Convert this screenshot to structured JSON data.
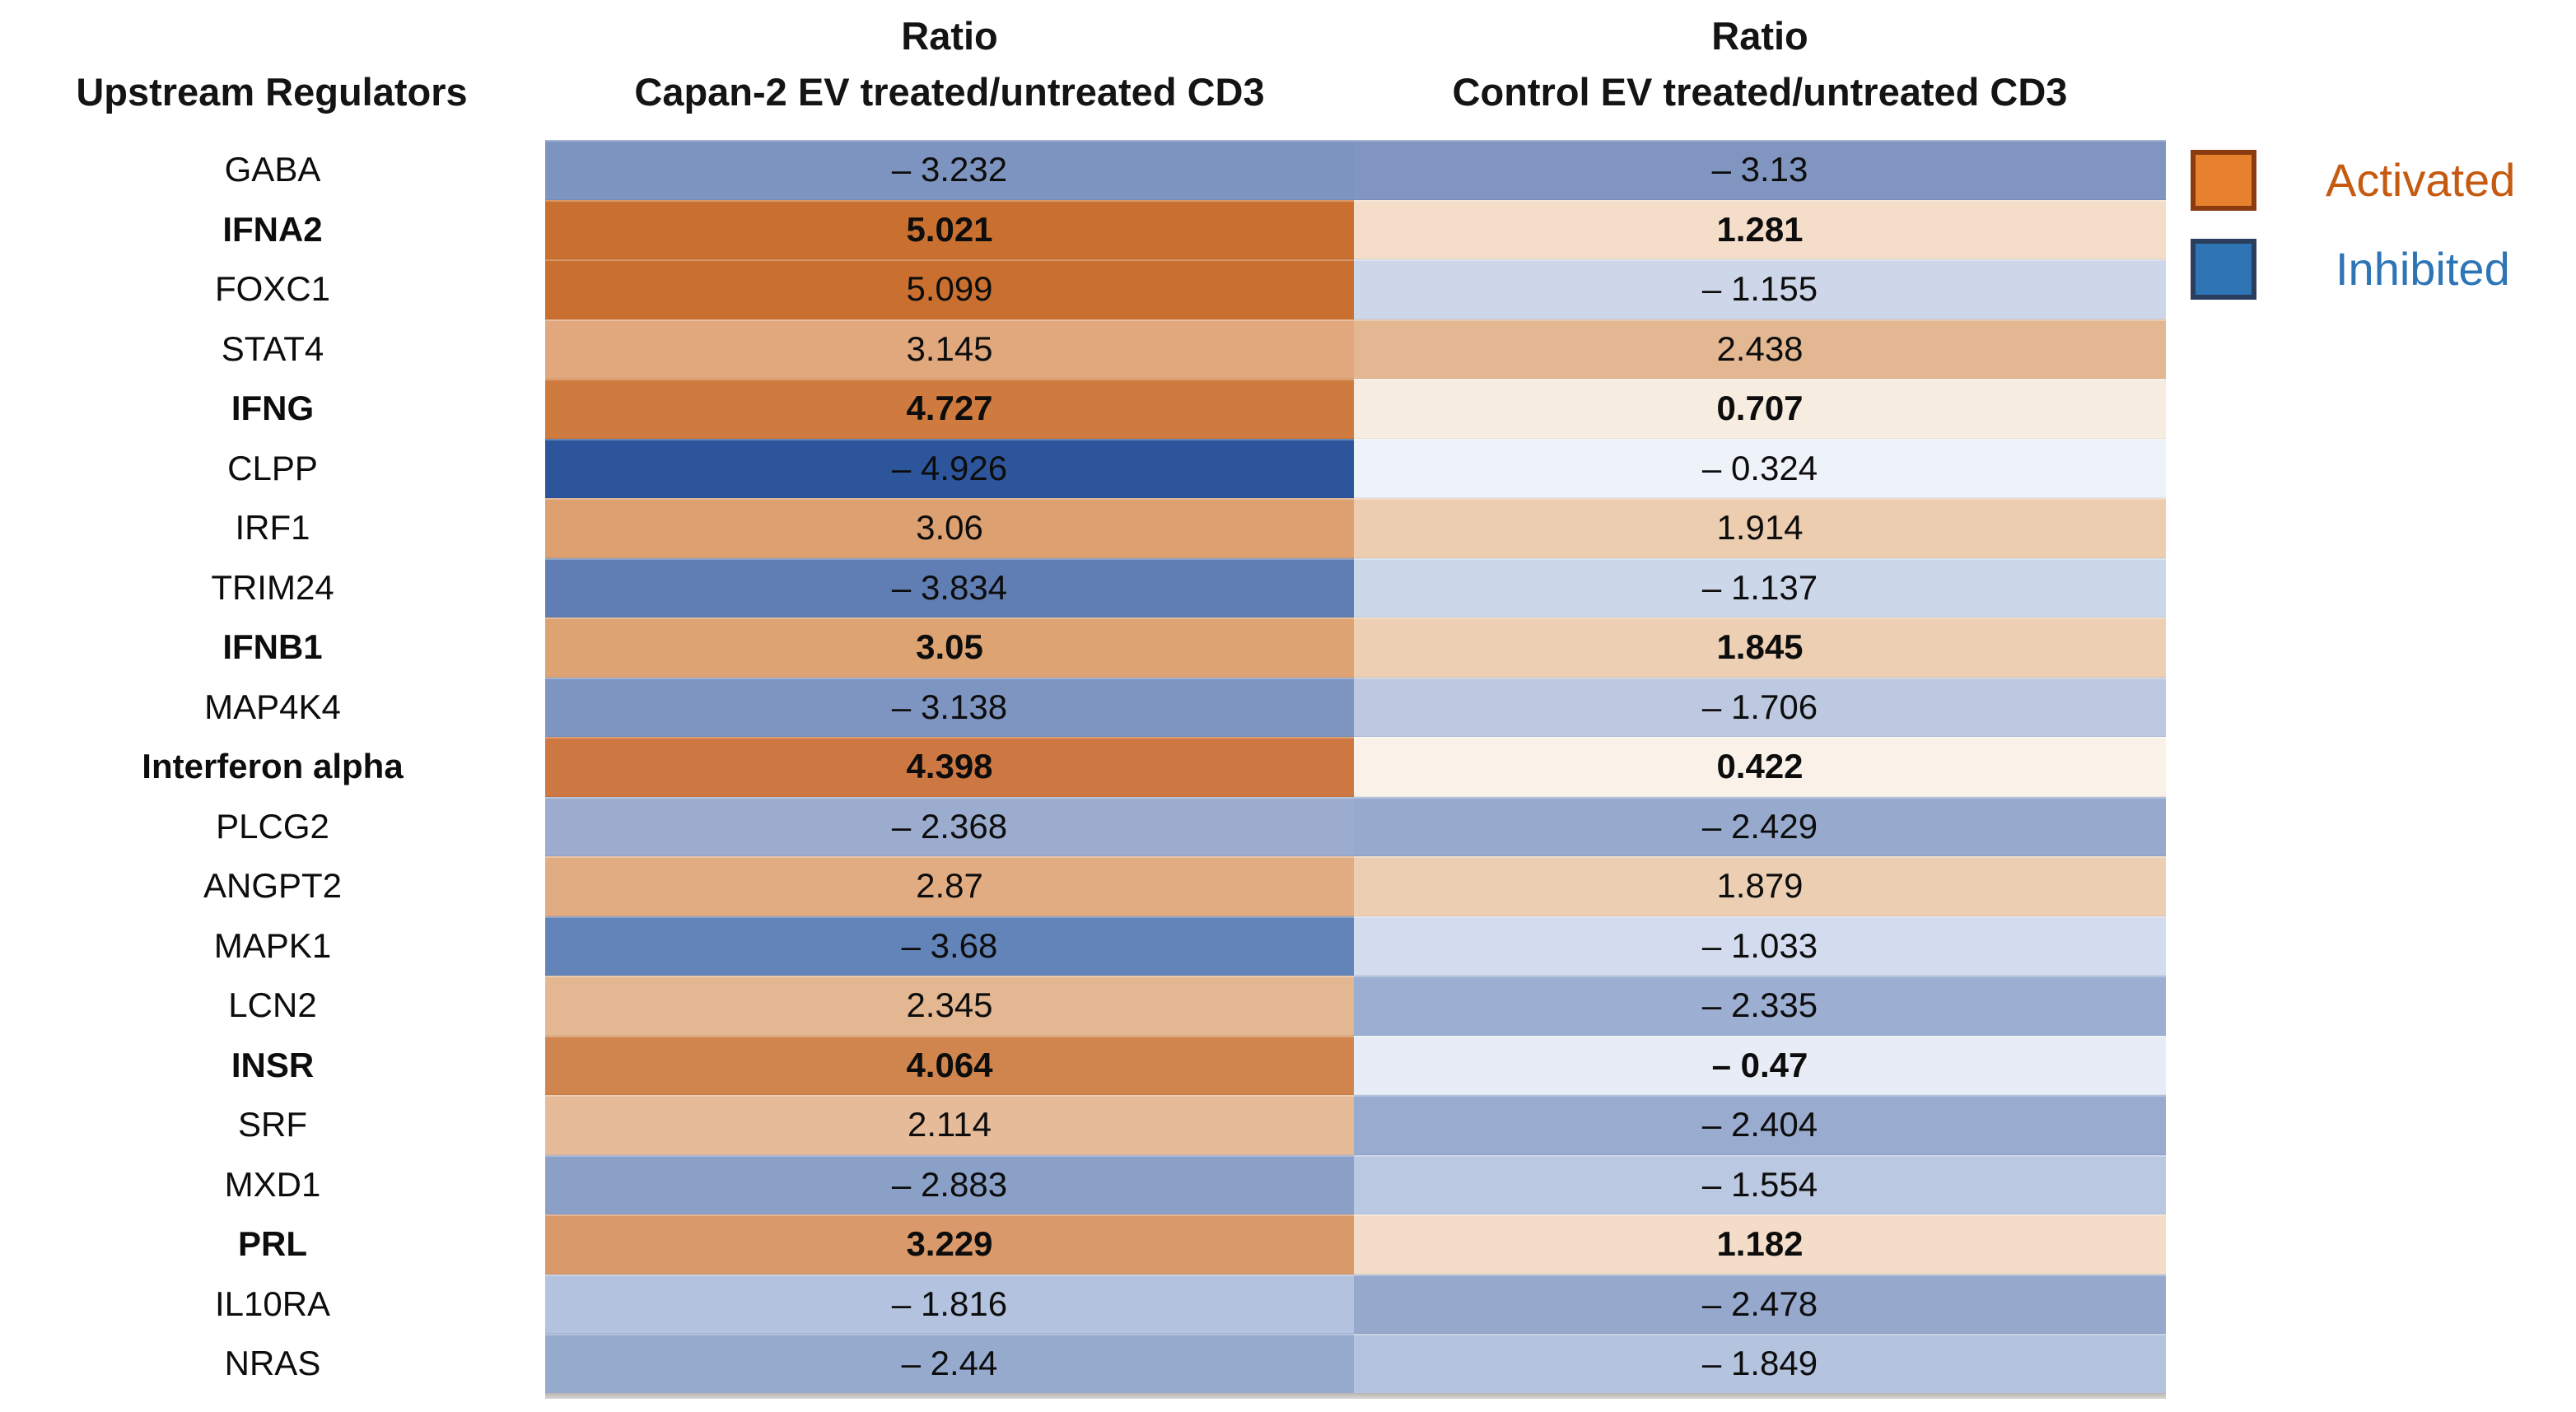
{
  "figure": {
    "row_header": "Upstream Regulators",
    "col_headers": [
      {
        "line1": "Ratio",
        "line2": "Capan-2 EV treated/untreated CD3"
      },
      {
        "line1": "Ratio",
        "line2": "Control EV treated/untreated CD3"
      }
    ]
  },
  "legend": {
    "items": [
      {
        "label": "Activated",
        "swatch_fill": "#e8812d",
        "swatch_border": "#8a3c10",
        "text_color": "#c55a11"
      },
      {
        "label": "Inhibited",
        "swatch_fill": "#2e75b6",
        "swatch_border": "#2c3e5d",
        "text_color": "#2e75b6"
      }
    ]
  },
  "chart_data": {
    "type": "heatmap",
    "title": "",
    "row_axis_label": "Upstream Regulators",
    "columns": [
      "Ratio Capan-2 EV treated/untreated CD3",
      "Ratio Control EV treated/untreated CD3"
    ],
    "color_coding": {
      "positive": "orange = Activated",
      "negative": "blue = Inhibited"
    },
    "value_range_observed": [
      -4.926,
      5.099
    ],
    "rows": [
      {
        "label": "GABA",
        "bold": false,
        "cells": [
          {
            "value": -3.232,
            "display": "– 3.232",
            "color": "#7e94c0"
          },
          {
            "value": -3.13,
            "display": "– 3.13",
            "color": "#8095c0"
          }
        ]
      },
      {
        "label": "IFNA2",
        "bold": true,
        "cells": [
          {
            "value": 5.021,
            "display": "5.021",
            "color": "#c96f2f"
          },
          {
            "value": 1.281,
            "display": "1.281",
            "color": "#f4ddc9"
          }
        ]
      },
      {
        "label": "FOXC1",
        "bold": false,
        "cells": [
          {
            "value": 5.099,
            "display": "5.099",
            "color": "#c96f2f"
          },
          {
            "value": -1.155,
            "display": "– 1.155",
            "color": "#cdd7e9"
          }
        ]
      },
      {
        "label": "STAT4",
        "bold": false,
        "cells": [
          {
            "value": 3.145,
            "display": "3.145",
            "color": "#e0a87c"
          },
          {
            "value": 2.438,
            "display": "2.438",
            "color": "#e3b792"
          }
        ]
      },
      {
        "label": "IFNG",
        "bold": true,
        "cells": [
          {
            "value": 4.727,
            "display": "4.727",
            "color": "#cf7a3e"
          },
          {
            "value": 0.707,
            "display": "0.707",
            "color": "#f7ece0"
          }
        ]
      },
      {
        "label": "CLPP",
        "bold": false,
        "cells": [
          {
            "value": -4.926,
            "display": "– 4.926",
            "color": "#2d559c"
          },
          {
            "value": -0.324,
            "display": "– 0.324",
            "color": "#eef2f9"
          }
        ]
      },
      {
        "label": "IRF1",
        "bold": false,
        "cells": [
          {
            "value": 3.06,
            "display": "3.06",
            "color": "#dda071"
          },
          {
            "value": 1.914,
            "display": "1.914",
            "color": "#eccdb0"
          }
        ]
      },
      {
        "label": "TRIM24",
        "bold": false,
        "cells": [
          {
            "value": -3.834,
            "display": "– 3.834",
            "color": "#607eb3"
          },
          {
            "value": -1.137,
            "display": "– 1.137",
            "color": "#ccd7e9"
          }
        ]
      },
      {
        "label": "IFNB1",
        "bold": true,
        "cells": [
          {
            "value": 3.05,
            "display": "3.05",
            "color": "#dda373"
          },
          {
            "value": 1.845,
            "display": "1.845",
            "color": "#edd0b4"
          }
        ]
      },
      {
        "label": "MAP4K4",
        "bold": false,
        "cells": [
          {
            "value": -3.138,
            "display": "– 3.138",
            "color": "#7e95c1"
          },
          {
            "value": -1.706,
            "display": "– 1.706",
            "color": "#bcc9e1"
          }
        ]
      },
      {
        "label": "Interferon alpha",
        "bold": true,
        "cells": [
          {
            "value": 4.398,
            "display": "4.398",
            "color": "#cd7843"
          },
          {
            "value": 0.422,
            "display": "0.422",
            "color": "#faf2e9"
          }
        ]
      },
      {
        "label": "PLCG2",
        "bold": false,
        "cells": [
          {
            "value": -2.368,
            "display": "– 2.368",
            "color": "#9bacce"
          },
          {
            "value": -2.429,
            "display": "– 2.429",
            "color": "#97aace"
          }
        ]
      },
      {
        "label": "ANGPT2",
        "bold": false,
        "cells": [
          {
            "value": 2.87,
            "display": "2.87",
            "color": "#e2ac82"
          },
          {
            "value": 1.879,
            "display": "1.879",
            "color": "#eccfb2"
          }
        ]
      },
      {
        "label": "MAPK1",
        "bold": false,
        "cells": [
          {
            "value": -3.68,
            "display": "– 3.68",
            "color": "#6384b8"
          },
          {
            "value": -1.033,
            "display": "– 1.033",
            "color": "#d3dcee"
          }
        ]
      },
      {
        "label": "LCN2",
        "bold": false,
        "cells": [
          {
            "value": 2.345,
            "display": "2.345",
            "color": "#e3b791"
          },
          {
            "value": -2.335,
            "display": "– 2.335",
            "color": "#9caed1"
          }
        ]
      },
      {
        "label": "INSR",
        "bold": true,
        "cells": [
          {
            "value": 4.064,
            "display": "4.064",
            "color": "#d1854e"
          },
          {
            "value": -0.47,
            "display": "– 0.47",
            "color": "#e7ecf6"
          }
        ]
      },
      {
        "label": "SRF",
        "bold": false,
        "cells": [
          {
            "value": 2.114,
            "display": "2.114",
            "color": "#e5bb99"
          },
          {
            "value": -2.404,
            "display": "– 2.404",
            "color": "#99abcf"
          }
        ]
      },
      {
        "label": "MXD1",
        "bold": false,
        "cells": [
          {
            "value": -2.883,
            "display": "– 2.883",
            "color": "#8aa0c7"
          },
          {
            "value": -1.554,
            "display": "– 1.554",
            "color": "#bac8e1"
          }
        ]
      },
      {
        "label": "PRL",
        "bold": true,
        "cells": [
          {
            "value": 3.229,
            "display": "3.229",
            "color": "#d9996a"
          },
          {
            "value": 1.182,
            "display": "1.182",
            "color": "#f3ddc9"
          }
        ]
      },
      {
        "label": "IL10RA",
        "bold": false,
        "cells": [
          {
            "value": -1.816,
            "display": "– 1.816",
            "color": "#b3c2de"
          },
          {
            "value": -2.478,
            "display": "– 2.478",
            "color": "#96a9cd"
          }
        ]
      },
      {
        "label": "NRAS",
        "bold": false,
        "cells": [
          {
            "value": -2.44,
            "display": "– 2.44",
            "color": "#95aacd"
          },
          {
            "value": -1.849,
            "display": "– 1.849",
            "color": "#b4c3de"
          }
        ]
      }
    ]
  }
}
